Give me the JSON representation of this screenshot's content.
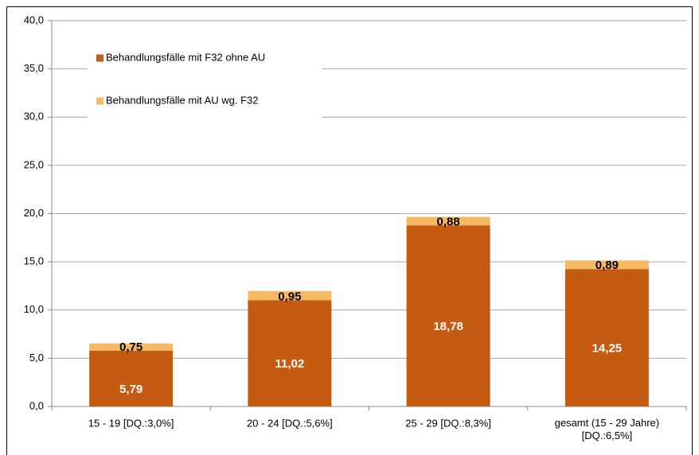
{
  "chart_data": {
    "type": "stacked_bar",
    "categories": [
      "15 - 19 [DQ.:3,0%]",
      "20 - 24 [DQ.:5,6%]",
      "25 - 29 [DQ.:8,3%]",
      "gesamt (15 - 29 Jahre)\n[DQ.:6,5%]"
    ],
    "series": [
      {
        "name": "Behandlungsfälle mit F32 ohne AU",
        "color": "#c55a11",
        "values": [
          5.79,
          11.02,
          18.78,
          14.25
        ],
        "value_labels": [
          "5,79",
          "11,02",
          "18,78",
          "14,25"
        ]
      },
      {
        "name": "Behandlungsfälle mit AU wg. F32",
        "color": "#f6b963",
        "values": [
          0.75,
          0.95,
          0.88,
          0.89
        ],
        "value_labels": [
          "0,75",
          "0,95",
          "0,88",
          "0,89"
        ]
      }
    ],
    "ylim": [
      0,
      40
    ],
    "yticks": [
      {
        "value": 0,
        "label": "0,0"
      },
      {
        "value": 5,
        "label": "5,0"
      },
      {
        "value": 10,
        "label": "10,0"
      },
      {
        "value": 15,
        "label": "15,0"
      },
      {
        "value": 20,
        "label": "20,0"
      },
      {
        "value": 25,
        "label": "25,0"
      },
      {
        "value": 30,
        "label": "30,0"
      },
      {
        "value": 35,
        "label": "35,0"
      },
      {
        "value": 40,
        "label": "40,0"
      }
    ],
    "grid": true,
    "legend": "upper left"
  }
}
